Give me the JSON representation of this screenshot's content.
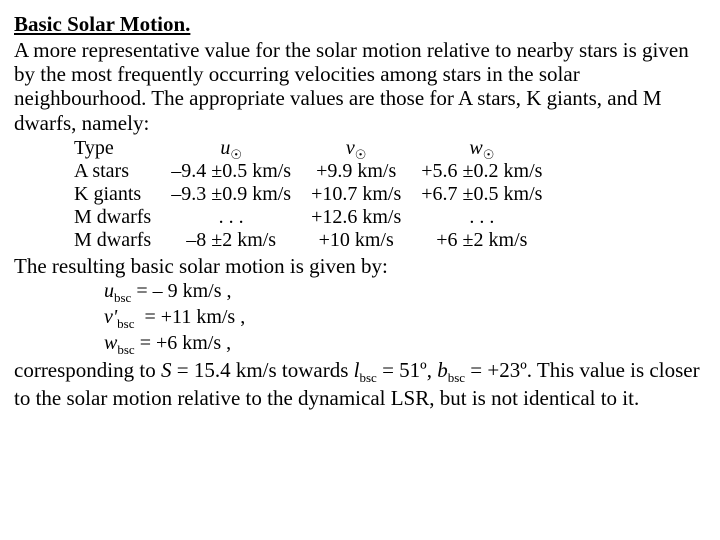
{
  "title": "Basic Solar Motion.",
  "intro": "A more representative value for the solar motion relative to nearby stars is given by the most frequently occurring velocities among stars in the solar neighbourhood. The appropriate values are those for A stars, K giants, and M dwarfs, namely:",
  "table": {
    "head": {
      "c0": "Type",
      "c1": "u",
      "c2": "v",
      "c3": "w",
      "sun": "☉"
    },
    "rows": [
      {
        "c0": "A stars",
        "c1": "–9.4 ±0.5 km/s",
        "c2": "+9.9 km/s",
        "c3": "+5.6 ±0.2 km/s"
      },
      {
        "c0": "K giants",
        "c1": "–9.3 ±0.9 km/s",
        "c2": "+10.7 km/s",
        "c3": "+6.7 ±0.5 km/s"
      },
      {
        "c0": "M dwarfs",
        "c1": ". . .",
        "c2": "+12.6 km/s",
        "c3": ". . ."
      },
      {
        "c0": "M dwarfs",
        "c1": "–8 ±2 km/s",
        "c2": "+10 km/s",
        "c3": "+6 ±2 km/s"
      }
    ]
  },
  "mid": "The resulting basic solar motion is given by:",
  "eq": {
    "u": {
      "sym": "u",
      "sub": "bsc",
      "val": "=  – 9 km/s ,"
    },
    "v": {
      "sym": "v'",
      "sub": "bsc",
      "val": "=  +11 km/s ,"
    },
    "w": {
      "sym": "w",
      "sub": "bsc",
      "val": "=  +6 km/s ,"
    }
  },
  "end": {
    "t1": "corresponding to ",
    "S": "S",
    "t2": " = 15.4 km/s towards ",
    "l": "l",
    "lsub": "bsc",
    "lval": " = 51º, ",
    "b": "b",
    "bsub": "bsc",
    "bval": " = +23º. This value is closer to the solar motion relative to the dynamical LSR, but is not identical to it."
  }
}
